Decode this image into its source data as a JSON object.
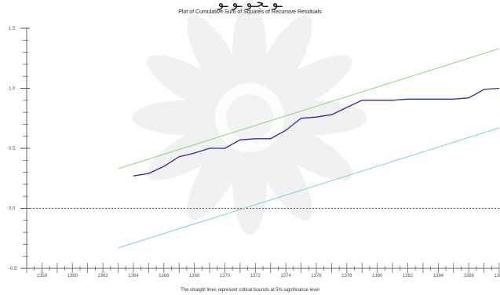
{
  "header": {
    "script_text": "ـو ـجـو ـو ـو"
  },
  "chart_data": {
    "type": "line",
    "title": "Plot of Cumulative Sum of Squares of Recursive Residuals",
    "note": "The straight lines represent critical bounds at 5% significance level",
    "xlabel": "",
    "ylabel": "",
    "xlim": [
      1357,
      1388
    ],
    "ylim": [
      -0.5,
      1.5
    ],
    "x_ticks": [
      1358,
      1360,
      1362,
      1364,
      1366,
      1368,
      1370,
      1372,
      1374,
      1376,
      1378,
      1380,
      1382,
      1384,
      1386,
      1388
    ],
    "x_tick_labels": [
      "1358",
      "1360",
      "1362",
      "1364",
      "1366",
      "1368",
      "1370",
      "1372",
      "1374",
      "1376",
      "1378",
      "1380",
      "1382",
      "1384",
      "1386",
      "1388"
    ],
    "y_ticks": [
      -0.5,
      0.0,
      0.5,
      1.0,
      1.5
    ],
    "y_tick_labels": [
      "-0.5",
      "0.0",
      "0.5",
      "1.0",
      "1.5"
    ],
    "grid": false,
    "reference_line": {
      "y": 0.0,
      "style": "dotted"
    },
    "series": [
      {
        "color": "#2b2bb0",
        "x": [
          1364,
          1365,
          1366,
          1367,
          1368,
          1369,
          1370,
          1371,
          1372,
          1373,
          1374,
          1375,
          1376,
          1377,
          1378,
          1379,
          1380,
          1381,
          1382,
          1383,
          1384,
          1385,
          1386,
          1387,
          1388
        ],
        "y": [
          0.27,
          0.29,
          0.35,
          0.43,
          0.46,
          0.5,
          0.5,
          0.57,
          0.58,
          0.58,
          0.65,
          0.75,
          0.76,
          0.78,
          0.84,
          0.9,
          0.9,
          0.9,
          0.91,
          0.91,
          0.91,
          0.91,
          0.92,
          0.99,
          1.0
        ]
      },
      {
        "color": "#8fd47a",
        "x": [
          1363,
          1388
        ],
        "y": [
          0.33,
          1.33
        ]
      },
      {
        "color": "#6fd6dd",
        "x": [
          1363,
          1388
        ],
        "y": [
          -0.33,
          0.67
        ]
      }
    ]
  }
}
